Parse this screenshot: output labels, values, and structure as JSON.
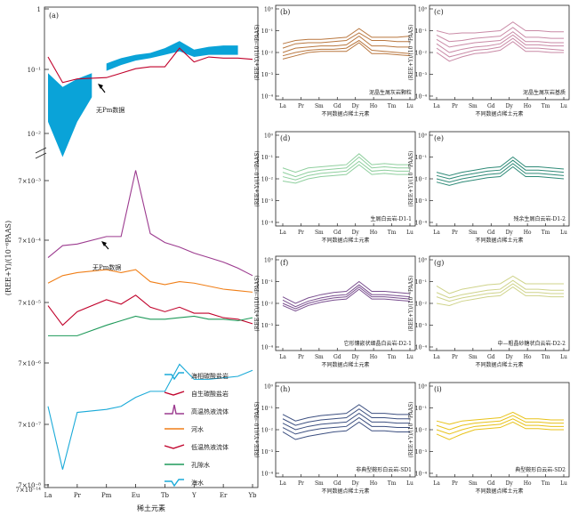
{
  "figure": {
    "ree_labels_big": [
      "La",
      "Pr",
      "Pm",
      "Eu",
      "Tb",
      "Y",
      "Er",
      "Yb"
    ],
    "ree_labels_small": [
      "La",
      "Pr",
      "Sm",
      "Gd",
      "Dy",
      "Ho",
      "Tm",
      "Lu"
    ],
    "ylabel": "(REE+Y)/(10⁻⁶PAAS)",
    "xlabel_big": "稀土元素",
    "xlabel_small": "不同数据点稀土元素",
    "no_pm_label": "无Pm数据"
  },
  "chart_data": [
    {
      "id": "a",
      "panel_label": "(a)",
      "type": "line",
      "upper": {
        "y_ticks": [
          "1",
          "10⁻¹",
          "10⁻²"
        ],
        "band": {
          "color": "#0aa3d8",
          "segment1": {
            "x": [
              0,
              1,
              2,
              3
            ],
            "lo": [
              0.0035,
              0.0006,
              0.0035,
              0.012
            ],
            "hi": [
              0.04,
              0.02,
              0.03,
              0.04
            ]
          },
          "segment2": {
            "x": [
              4,
              5,
              6,
              7,
              8,
              9,
              10,
              11,
              12,
              13
            ],
            "lo": [
              0.045,
              0.06,
              0.075,
              0.085,
              0.1,
              0.12,
              0.09,
              0.1,
              0.1,
              0.1
            ],
            "hi": [
              0.065,
              0.085,
              0.1,
              0.11,
              0.14,
              0.2,
              0.13,
              0.15,
              0.16,
              0.16
            ]
          }
        },
        "red_line": {
          "color": "#c0002a",
          "x": [
            0,
            1,
            2,
            4,
            5,
            6,
            7,
            8,
            9,
            10,
            11,
            12,
            13,
            14
          ],
          "y": [
            0.09,
            0.025,
            0.03,
            0.032,
            0.04,
            0.05,
            0.055,
            0.055,
            0.14,
            0.07,
            0.09,
            0.085,
            0.085,
            0.08
          ]
        }
      },
      "lower": {
        "y_ticks": [
          "7×10⁻³",
          "7×10⁻⁴",
          "7×10⁻⁵",
          "7×10⁻⁶",
          "7×10⁻⁷",
          "7×10⁻⁸",
          "7×10⁻¹⁴"
        ],
        "series": [
          {
            "name": "海相碳酸盐岩",
            "color": "#1aaad8",
            "x": [
              0,
              1,
              2,
              4,
              5,
              6,
              7,
              8,
              9,
              10,
              11,
              12,
              13,
              14
            ],
            "y": [
              -5.9,
              -8.0,
              -6.1,
              -6.0,
              -5.9,
              -5.6,
              -5.4,
              -5.4,
              -4.5,
              -5.0,
              -5.0,
              -4.95,
              -4.9,
              -4.7
            ]
          },
          {
            "name": "高温热液流体",
            "color": "#9c3b8f",
            "x": [
              0,
              1,
              2,
              4,
              5,
              6,
              7,
              8,
              9,
              10,
              11,
              12,
              13,
              14
            ],
            "y": [
              -0.95,
              -0.55,
              -0.5,
              -0.25,
              -0.25,
              1.95,
              -0.15,
              -0.45,
              -0.6,
              -0.8,
              -0.95,
              -1.1,
              -1.3,
              -1.55
            ]
          },
          {
            "name": "河水",
            "color": "#f07f18",
            "x": [
              0,
              1,
              2,
              4,
              5,
              6,
              7,
              8,
              9,
              10,
              11,
              12,
              13,
              14
            ],
            "y": [
              -1.8,
              -1.55,
              -1.45,
              -1.35,
              -1.45,
              -1.35,
              -1.75,
              -1.85,
              -1.75,
              -1.8,
              -1.9,
              -2.0,
              -2.05,
              -2.1
            ]
          },
          {
            "name": "低温热液流体",
            "color": "#c0002a",
            "x": [
              0,
              1,
              2,
              4,
              5,
              6,
              7,
              8,
              9,
              10,
              11,
              12,
              13,
              14
            ],
            "y": [
              -2.55,
              -3.2,
              -2.75,
              -2.35,
              -2.5,
              -2.2,
              -2.6,
              -2.75,
              -2.6,
              -2.8,
              -2.8,
              -2.95,
              -3.0,
              -3.15
            ]
          },
          {
            "name": "孔隙水",
            "color": "#1f9a5a",
            "x": [
              0,
              1,
              2,
              4,
              5,
              6,
              7,
              8,
              9,
              10,
              11,
              12,
              13,
              14
            ],
            "y": [
              -3.55,
              -3.55,
              -3.55,
              -3.2,
              -3.05,
              -2.9,
              -3.0,
              -3.0,
              -2.95,
              -2.9,
              -3.0,
              -3.0,
              -3.05,
              -2.95
            ]
          }
        ],
        "legend": [
          "海相碳酸盐岩",
          "自生碳酸盐岩",
          "高温热液流体",
          "河水",
          "低温热液流体",
          "孔隙水",
          "海水"
        ]
      }
    },
    {
      "id": "b",
      "panel_label": "(b)",
      "title": "泥晶生屑灰岩颗粒",
      "color": "#b9773f",
      "y_ticks": [
        "10⁰",
        "10⁻¹",
        "10⁻²",
        "10⁻³",
        "10⁻⁴"
      ],
      "series": [
        [
          -1.6,
          -1.45,
          -1.4,
          -1.4,
          -1.35,
          -1.3,
          -0.9,
          -1.3,
          -1.3,
          -1.3,
          -1.25
        ],
        [
          -1.8,
          -1.6,
          -1.55,
          -1.55,
          -1.5,
          -1.45,
          -1.1,
          -1.45,
          -1.45,
          -1.5,
          -1.5
        ],
        [
          -2.0,
          -1.8,
          -1.75,
          -1.7,
          -1.7,
          -1.65,
          -1.25,
          -1.7,
          -1.7,
          -1.75,
          -1.75
        ],
        [
          -2.15,
          -2.0,
          -1.9,
          -1.85,
          -1.85,
          -1.8,
          -1.45,
          -1.9,
          -1.95,
          -2.0,
          -2.05
        ],
        [
          -2.3,
          -2.15,
          -2.0,
          -1.95,
          -1.95,
          -1.95,
          -1.55,
          -2.05,
          -2.05,
          -2.1,
          -2.15
        ]
      ]
    },
    {
      "id": "c",
      "panel_label": "(c)",
      "title": "泥晶生屑灰岩基质",
      "color": "#c98aa6",
      "y_ticks": [
        "10⁰",
        "10⁻¹",
        "10⁻²",
        "10⁻³",
        "10⁻⁴"
      ],
      "series": [
        [
          -1.0,
          -1.15,
          -1.1,
          -1.1,
          -1.05,
          -1.0,
          -0.6,
          -1.0,
          -1.0,
          -1.05,
          -1.05
        ],
        [
          -1.2,
          -1.5,
          -1.45,
          -1.35,
          -1.3,
          -1.25,
          -0.85,
          -1.3,
          -1.3,
          -1.35,
          -1.35
        ],
        [
          -1.4,
          -1.75,
          -1.65,
          -1.55,
          -1.5,
          -1.45,
          -1.05,
          -1.5,
          -1.5,
          -1.55,
          -1.55
        ],
        [
          -1.6,
          -2.0,
          -1.85,
          -1.75,
          -1.7,
          -1.6,
          -1.2,
          -1.65,
          -1.65,
          -1.7,
          -1.7
        ],
        [
          -1.8,
          -2.2,
          -2.05,
          -1.9,
          -1.85,
          -1.75,
          -1.35,
          -1.8,
          -1.8,
          -1.85,
          -1.9
        ],
        [
          -2.0,
          -2.4,
          -2.2,
          -2.05,
          -2.0,
          -1.9,
          -1.5,
          -1.95,
          -1.95,
          -2.0,
          -2.0
        ]
      ]
    },
    {
      "id": "d",
      "panel_label": "(d)",
      "title": "生屑白云岩-D1-1",
      "color": "#8fcf9e",
      "y_ticks": [
        "10⁰",
        "10⁻¹",
        "10⁻²",
        "10⁻³",
        "10⁻⁴"
      ],
      "series": [
        [
          -1.5,
          -1.7,
          -1.5,
          -1.45,
          -1.4,
          -1.35,
          -0.85,
          -1.35,
          -1.3,
          -1.35,
          -1.35
        ],
        [
          -1.7,
          -1.9,
          -1.7,
          -1.6,
          -1.55,
          -1.5,
          -1.0,
          -1.5,
          -1.45,
          -1.5,
          -1.5
        ],
        [
          -1.9,
          -2.05,
          -1.85,
          -1.75,
          -1.7,
          -1.65,
          -1.2,
          -1.65,
          -1.6,
          -1.65,
          -1.65
        ],
        [
          -2.1,
          -2.2,
          -2.0,
          -1.9,
          -1.85,
          -1.8,
          -1.35,
          -1.8,
          -1.75,
          -1.8,
          -1.8
        ]
      ]
    },
    {
      "id": "e",
      "panel_label": "(e)",
      "title": "残余生屑白云岩-D1-2",
      "color": "#2e8a77",
      "y_ticks": [
        "10⁰",
        "10⁻¹",
        "10⁻²",
        "10⁻³",
        "10⁻⁴"
      ],
      "series": [
        [
          -1.7,
          -1.85,
          -1.7,
          -1.6,
          -1.5,
          -1.45,
          -1.0,
          -1.45,
          -1.45,
          -1.5,
          -1.55
        ],
        [
          -1.85,
          -2.0,
          -1.85,
          -1.75,
          -1.65,
          -1.6,
          -1.15,
          -1.6,
          -1.6,
          -1.65,
          -1.7
        ],
        [
          -2.0,
          -2.15,
          -2.0,
          -1.9,
          -1.8,
          -1.75,
          -1.3,
          -1.75,
          -1.75,
          -1.8,
          -1.85
        ],
        [
          -2.15,
          -2.3,
          -2.15,
          -2.05,
          -1.95,
          -1.9,
          -1.45,
          -1.9,
          -1.9,
          -1.95,
          -2.0
        ]
      ]
    },
    {
      "id": "f",
      "panel_label": "(f)",
      "title": "它形镶嵌状细晶白云岩-D2-1",
      "color": "#7a4f8f",
      "y_ticks": [
        "10⁰",
        "10⁻¹",
        "10⁻²",
        "10⁻³",
        "10⁻⁴"
      ],
      "series": [
        [
          -1.7,
          -2.0,
          -1.75,
          -1.6,
          -1.5,
          -1.45,
          -1.0,
          -1.45,
          -1.45,
          -1.5,
          -1.55
        ],
        [
          -1.85,
          -2.15,
          -1.9,
          -1.75,
          -1.65,
          -1.6,
          -1.15,
          -1.6,
          -1.6,
          -1.65,
          -1.7
        ],
        [
          -2.0,
          -2.25,
          -2.0,
          -1.85,
          -1.75,
          -1.7,
          -1.25,
          -1.7,
          -1.7,
          -1.75,
          -1.8
        ],
        [
          -2.1,
          -2.35,
          -2.1,
          -1.95,
          -1.85,
          -1.8,
          -1.35,
          -1.8,
          -1.8,
          -1.85,
          -1.9
        ]
      ]
    },
    {
      "id": "g",
      "panel_label": "(g)",
      "title": "中—粗晶砂糖状白云岩-D2-2",
      "color": "#cfd38a",
      "y_ticks": [
        "10⁰",
        "10⁻¹",
        "10⁻²",
        "10⁻³",
        "10⁻⁴"
      ],
      "series": [
        [
          -1.2,
          -1.55,
          -1.35,
          -1.25,
          -1.15,
          -1.1,
          -0.75,
          -1.1,
          -1.1,
          -1.1,
          -1.1
        ],
        [
          -1.5,
          -1.75,
          -1.6,
          -1.5,
          -1.4,
          -1.35,
          -0.95,
          -1.35,
          -1.35,
          -1.4,
          -1.4
        ],
        [
          -1.7,
          -1.9,
          -1.75,
          -1.65,
          -1.55,
          -1.5,
          -1.1,
          -1.5,
          -1.5,
          -1.55,
          -1.55
        ],
        [
          -2.0,
          -2.1,
          -1.9,
          -1.8,
          -1.7,
          -1.65,
          -1.25,
          -1.65,
          -1.65,
          -1.7,
          -1.7
        ]
      ]
    },
    {
      "id": "h",
      "panel_label": "(h)",
      "title": "非典型鞍形白云岩-SD1",
      "color": "#3c4f80",
      "y_ticks": [
        "10⁰",
        "10⁻¹",
        "10⁻²",
        "10⁻³",
        "10⁻⁴"
      ],
      "series": [
        [
          -1.3,
          -1.6,
          -1.45,
          -1.35,
          -1.3,
          -1.25,
          -0.85,
          -1.25,
          -1.25,
          -1.3,
          -1.3
        ],
        [
          -1.5,
          -1.8,
          -1.65,
          -1.55,
          -1.5,
          -1.45,
          -1.05,
          -1.45,
          -1.45,
          -1.5,
          -1.5
        ],
        [
          -1.7,
          -2.0,
          -1.85,
          -1.75,
          -1.7,
          -1.65,
          -1.25,
          -1.65,
          -1.65,
          -1.7,
          -1.7
        ],
        [
          -1.9,
          -2.2,
          -2.05,
          -1.95,
          -1.9,
          -1.85,
          -1.45,
          -1.85,
          -1.85,
          -1.9,
          -1.9
        ],
        [
          -2.1,
          -2.45,
          -2.3,
          -2.2,
          -2.1,
          -2.05,
          -1.65,
          -2.05,
          -2.05,
          -2.1,
          -2.1
        ]
      ]
    },
    {
      "id": "i",
      "panel_label": "(i)",
      "title": "典型鞍形白云岩-SD2",
      "color": "#e8c21a",
      "y_ticks": [
        "10⁰",
        "10⁻¹",
        "10⁻²",
        "10⁻³",
        "10⁻⁴"
      ],
      "series": [
        [
          -1.6,
          -1.75,
          -1.6,
          -1.55,
          -1.5,
          -1.45,
          -1.2,
          -1.5,
          -1.5,
          -1.55,
          -1.55
        ],
        [
          -1.8,
          -2.0,
          -1.8,
          -1.7,
          -1.65,
          -1.6,
          -1.35,
          -1.65,
          -1.65,
          -1.7,
          -1.7
        ],
        [
          -2.0,
          -2.2,
          -2.0,
          -1.85,
          -1.8,
          -1.75,
          -1.5,
          -1.8,
          -1.8,
          -1.85,
          -1.85
        ],
        [
          -2.2,
          -2.45,
          -2.2,
          -2.0,
          -1.95,
          -1.9,
          -1.65,
          -1.95,
          -1.95,
          -2.0,
          -2.0
        ]
      ]
    }
  ]
}
